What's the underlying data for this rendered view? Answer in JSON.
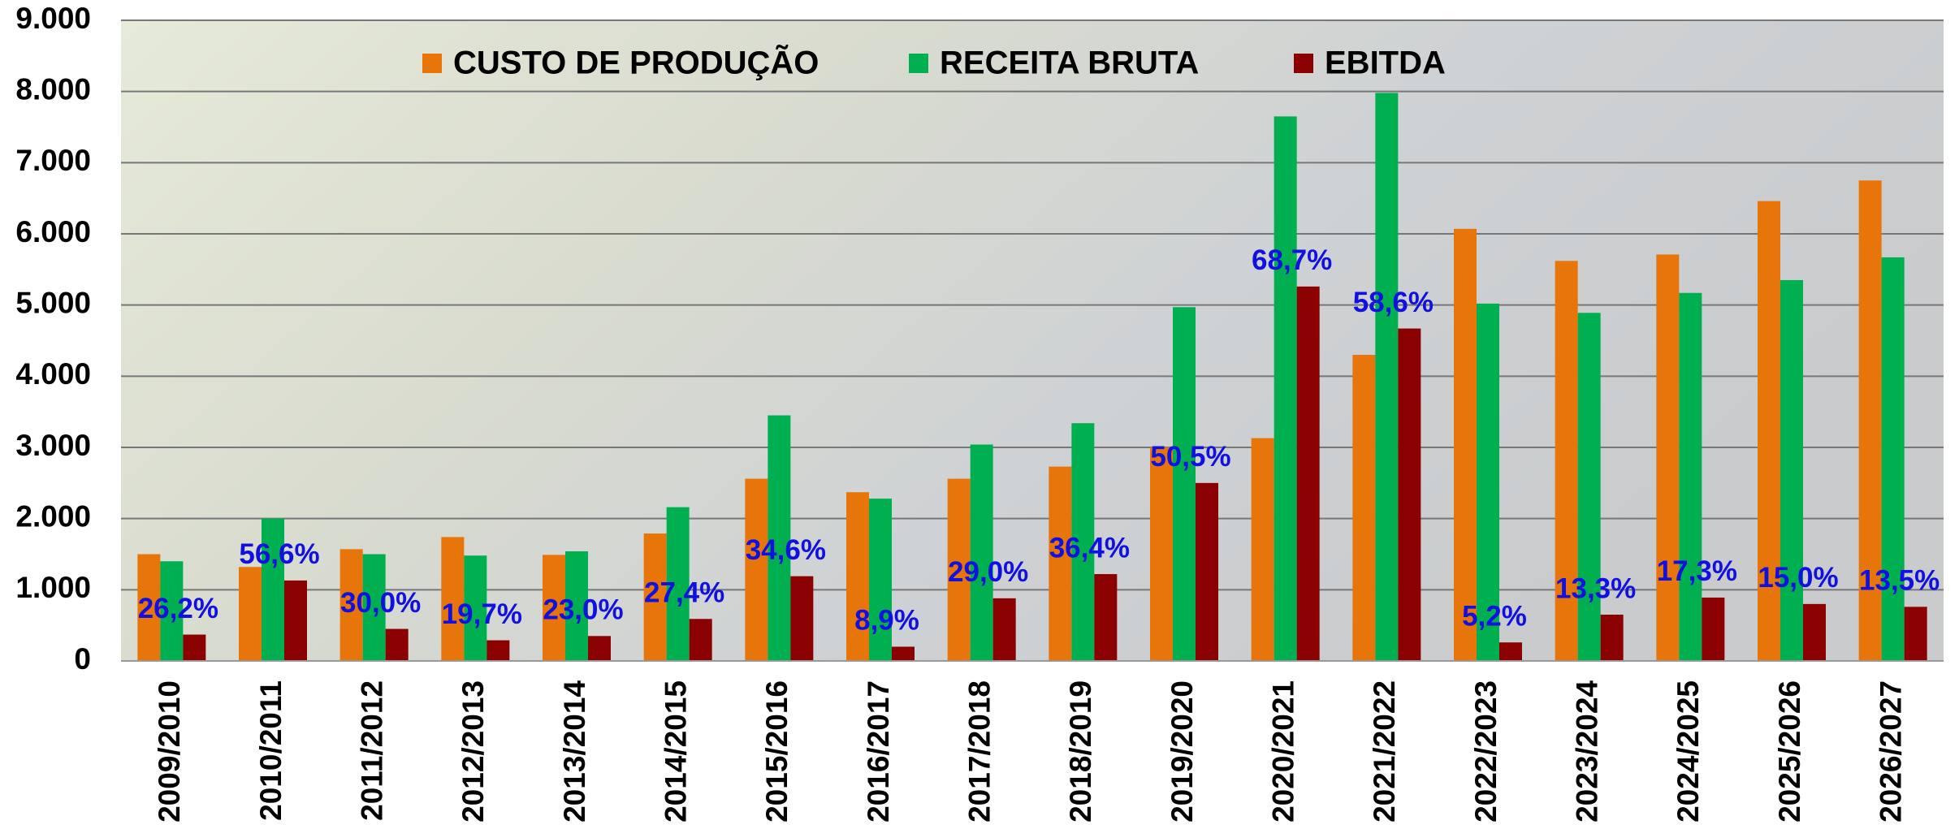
{
  "chart_data": {
    "type": "bar",
    "categories": [
      "2009/2010",
      "2010/2011",
      "2011/2012",
      "2012/2013",
      "2013/2014",
      "2014/2015",
      "2015/2016",
      "2016/2017",
      "2017/2018",
      "2018/2019",
      "2019/2020",
      "2020/2021",
      "2021/2022",
      "2022/2023",
      "2023/2024",
      "2024/2025",
      "2025/2026",
      "2026/2027"
    ],
    "series": [
      {
        "name": "CUSTO DE PRODUÇÃO",
        "color": "#e8750a",
        "values": [
          1500,
          1320,
          1570,
          1740,
          1490,
          1790,
          2560,
          2370,
          2560,
          2730,
          3000,
          3130,
          4300,
          6070,
          5620,
          5710,
          6460,
          6750
        ]
      },
      {
        "name": "RECEITA BRUTA",
        "color": "#00b050",
        "values": [
          1400,
          2000,
          1500,
          1480,
          1540,
          2160,
          3450,
          2280,
          3040,
          3340,
          4970,
          7650,
          7980,
          5020,
          4890,
          5170,
          5350,
          5670
        ]
      },
      {
        "name": "EBITDA",
        "color": "#8b0000",
        "values": [
          370,
          1130,
          450,
          290,
          350,
          590,
          1190,
          200,
          880,
          1220,
          2500,
          5260,
          4670,
          260,
          650,
          890,
          800,
          760
        ]
      }
    ],
    "margin_labels": [
      "26,2%",
      "56,6%",
      "30,0%",
      "19,7%",
      "23,0%",
      "27,4%",
      "34,6%",
      "8,9%",
      "29,0%",
      "36,4%",
      "50,5%",
      "68,7%",
      "58,6%",
      "5,2%",
      "13,3%",
      "17,3%",
      "15,0%",
      "13,5%"
    ],
    "ylim": [
      0,
      9000
    ],
    "yticks": [
      0,
      {
        "value": 1000,
        "label": "1.000"
      },
      {
        "value": 2000,
        "label": "2.000"
      },
      {
        "value": 3000,
        "label": "3.000"
      },
      {
        "value": 4000,
        "label": "4.000"
      },
      {
        "value": 5000,
        "label": "5.000"
      },
      {
        "value": 6000,
        "label": "6.000"
      },
      {
        "value": 7000,
        "label": "7.000"
      },
      {
        "value": 8000,
        "label": "8.000"
      },
      {
        "value": 9000,
        "label": "9.000"
      }
    ],
    "grid": true,
    "legend": "top"
  }
}
